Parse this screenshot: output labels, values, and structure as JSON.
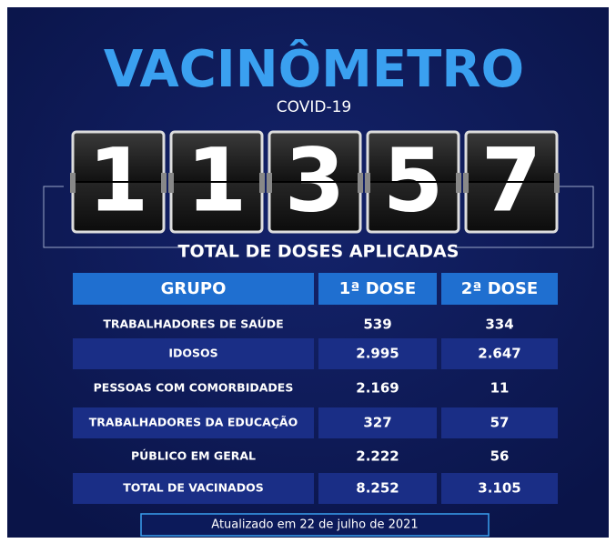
{
  "header": {
    "title": "VACINÔMETRO",
    "subtitle": "COVID-19"
  },
  "counter": {
    "digits": [
      "1",
      "1",
      "3",
      "5",
      "7"
    ],
    "label": "TOTAL DE DOSES APLICADAS"
  },
  "table": {
    "columns": [
      "GRUPO",
      "1ª DOSE",
      "2ª DOSE"
    ],
    "rows": [
      [
        "TRABALHADORES DE SAÚDE",
        "539",
        "334"
      ],
      [
        "IDOSOS",
        "2.995",
        "2.647"
      ],
      [
        "PESSOAS COM COMORBIDADES",
        "2.169",
        "11"
      ],
      [
        "TRABALHADORES DA EDUCAÇÃO",
        "327",
        "57"
      ],
      [
        "PÚBLICO EM GERAL",
        "2.222",
        "56"
      ],
      [
        "TOTAL DE VACINADOS",
        "8.252",
        "3.105"
      ]
    ]
  },
  "footer": {
    "note": "Atualizado em 22 de julho de 2021"
  }
}
